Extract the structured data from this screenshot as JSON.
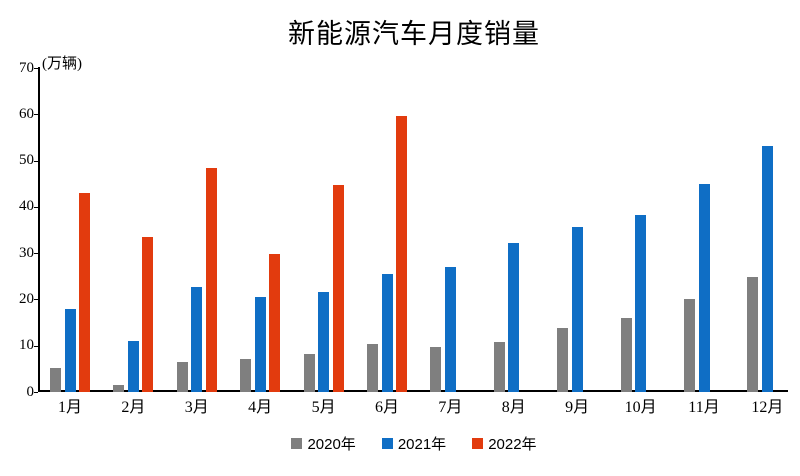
{
  "chart": {
    "title": "新能源汽车月度销量",
    "unit_label": "(万辆)"
  },
  "chart_data": {
    "type": "bar",
    "title": "新能源汽车月度销量",
    "unit_label": "(万辆)",
    "categories": [
      "1月",
      "2月",
      "3月",
      "4月",
      "5月",
      "6月",
      "7月",
      "8月",
      "9月",
      "10月",
      "11月",
      "12月"
    ],
    "series": [
      {
        "name": "2020年",
        "color": "#7F7F7F",
        "values": [
          5.2,
          1.6,
          6.5,
          7.2,
          8.2,
          10.4,
          9.8,
          10.9,
          13.8,
          16.0,
          20.0,
          24.8
        ]
      },
      {
        "name": "2021年",
        "color": "#0F6EC5",
        "values": [
          17.9,
          11.0,
          22.6,
          20.6,
          21.7,
          25.6,
          27.1,
          32.1,
          35.7,
          38.3,
          45.0,
          53.1
        ]
      },
      {
        "name": "2022年",
        "color": "#E23B0E",
        "values": [
          43.1,
          33.4,
          48.4,
          29.9,
          44.7,
          59.6,
          null,
          null,
          null,
          null,
          null,
          null
        ]
      }
    ],
    "xlabel": "",
    "ylabel": "万辆",
    "ylim": [
      0,
      70
    ],
    "ytick_step": 10,
    "grid": false,
    "legend_position": "bottom",
    "text_color": "#000000",
    "axis_color": "#000000"
  }
}
